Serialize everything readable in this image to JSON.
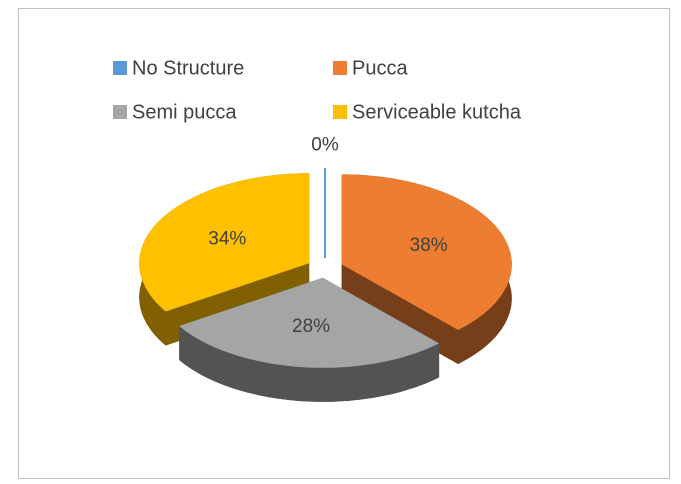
{
  "chart_data": {
    "type": "pie",
    "categories": [
      "No Structure",
      "Pucca",
      "Semi pucca",
      "Serviceable kutcha"
    ],
    "values": [
      0,
      38,
      28,
      34
    ],
    "value_labels": [
      "0%",
      "38%",
      "28%",
      "34%"
    ],
    "colors": [
      "#5b9bd5",
      "#ed7d31",
      "#a5a5a5",
      "#ffc000"
    ],
    "legend": "top"
  }
}
